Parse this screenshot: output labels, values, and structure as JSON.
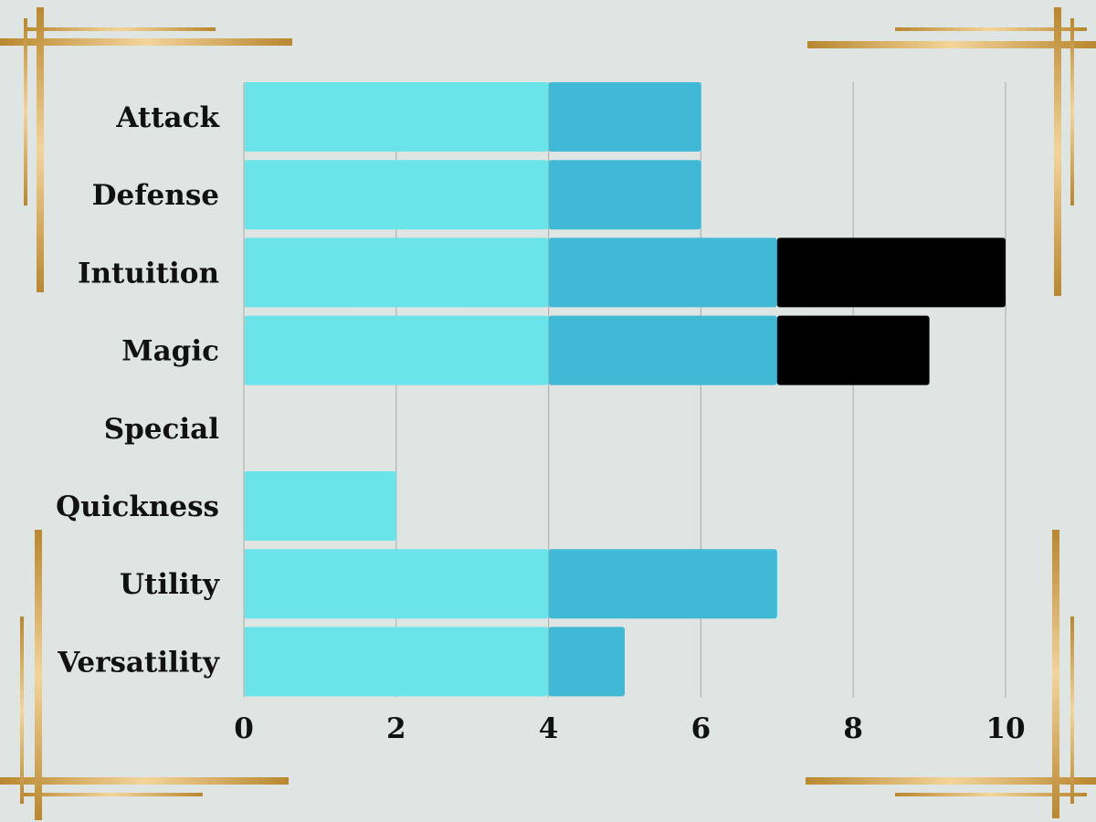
{
  "chart_data": {
    "type": "bar",
    "orientation": "horizontal",
    "stacked": true,
    "categories": [
      "Attack",
      "Defense",
      "Intuition",
      "Magic",
      "Special",
      "Quickness",
      "Utility",
      "Versatility"
    ],
    "series": [
      {
        "color": "#6ae4e9",
        "values": [
          4,
          4,
          4,
          4,
          0,
          2,
          4,
          4
        ]
      },
      {
        "color": "#40b8d6",
        "values": [
          2,
          2,
          3,
          3,
          0,
          0,
          3,
          1
        ]
      },
      {
        "color": "#000000",
        "values": [
          0,
          0,
          3,
          2,
          0,
          0,
          0,
          0
        ]
      }
    ],
    "x_ticks": [
      "0",
      "2",
      "4",
      "6",
      "8",
      "10"
    ],
    "xlim": [
      0,
      10
    ],
    "grid": "vertical",
    "legend": "none"
  },
  "theme": {
    "background": "#dfe5e2",
    "frame_gold": "#c8963e",
    "frame_highlight": "#f3d49a"
  }
}
